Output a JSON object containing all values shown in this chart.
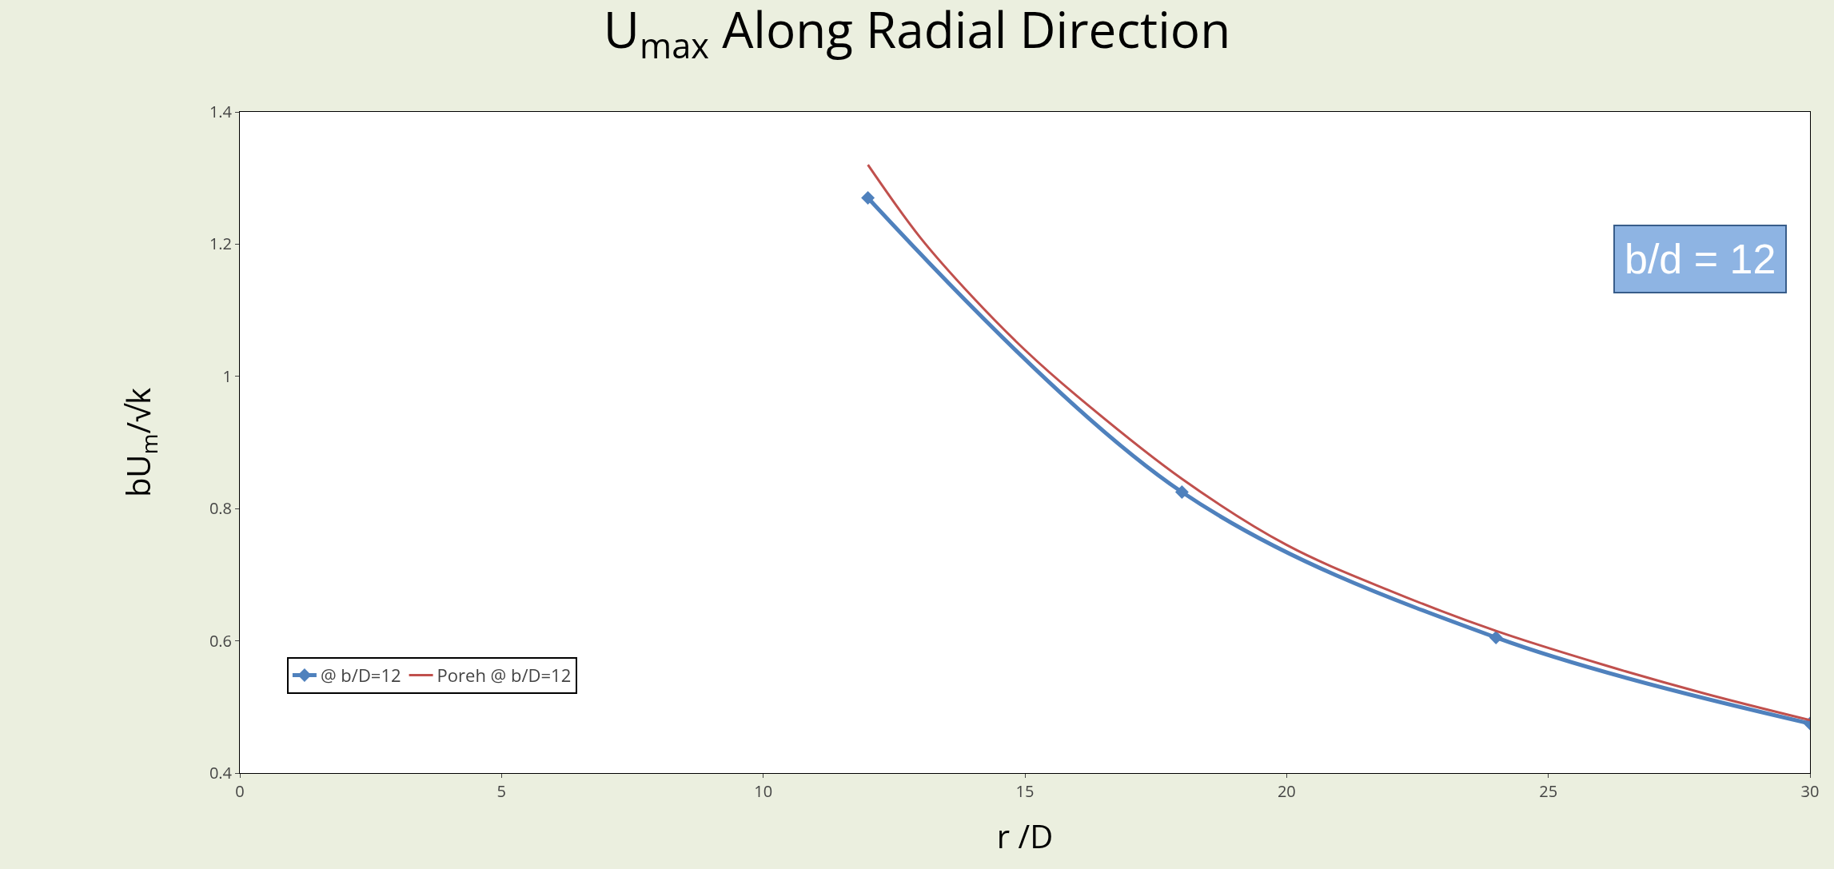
{
  "chart_data": {
    "type": "line",
    "title": "U$_{max}$ Along Radial Direction",
    "xlabel": "r /D",
    "ylabel": "bU$_{m}$/√k",
    "annotations": [
      "b/d = 12"
    ],
    "series": [
      {
        "name": "@ b/D=12",
        "color": "#4f81bd",
        "marker": "diamond",
        "x": [
          12,
          18,
          24,
          30
        ],
        "values": [
          1.27,
          0.825,
          0.605,
          0.475
        ]
      },
      {
        "name": "Poreh @ b/D=12",
        "color": "#c0504d",
        "marker": "none",
        "x": [
          12,
          13,
          14,
          15,
          16,
          18,
          20,
          22,
          24,
          26,
          28,
          30
        ],
        "values": [
          1.32,
          1.21,
          1.12,
          1.04,
          0.97,
          0.845,
          0.745,
          0.675,
          0.615,
          0.565,
          0.52,
          0.48
        ]
      }
    ],
    "xlim": [
      0,
      30
    ],
    "xticks": [
      0,
      5,
      10,
      15,
      20,
      25,
      30
    ],
    "ylim": [
      0.4,
      1.4
    ],
    "yticks": [
      0.4,
      0.6,
      0.8,
      1,
      1.2,
      1.4
    ],
    "grid": false,
    "legend": "bottom left"
  }
}
